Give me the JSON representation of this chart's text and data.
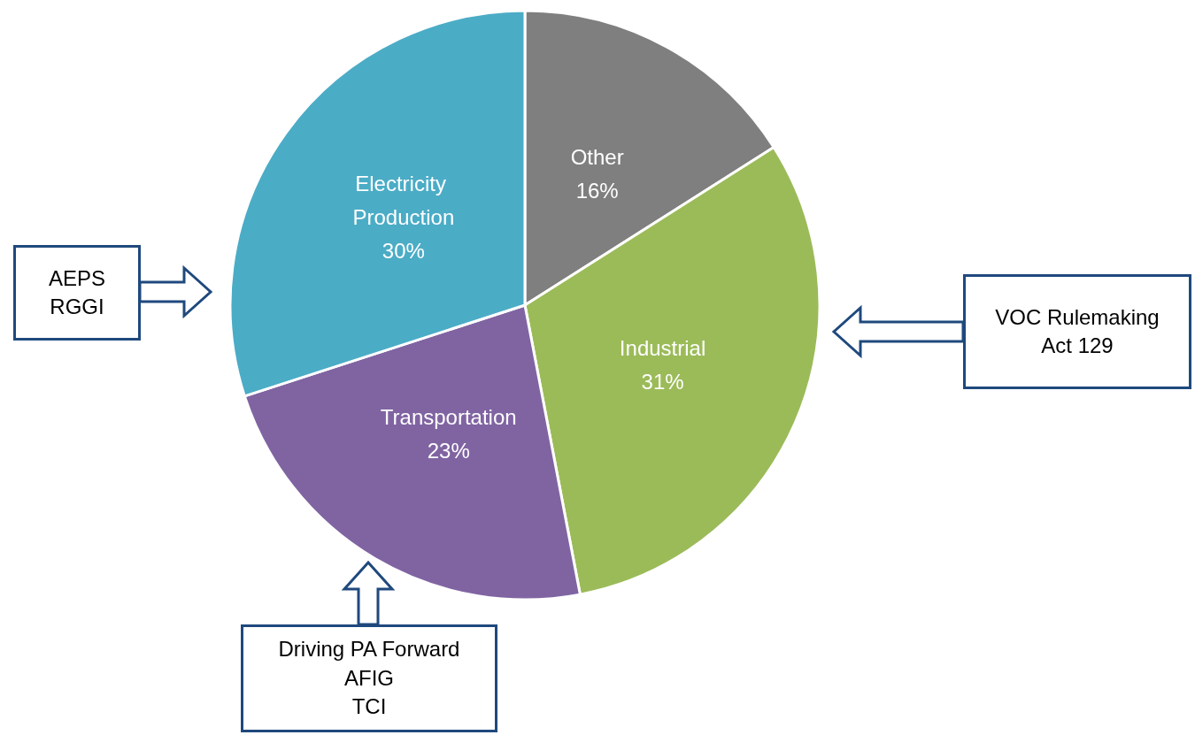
{
  "chart_data": {
    "type": "pie",
    "categories": [
      "Other",
      "Industrial",
      "Transportation",
      "Electricity Production"
    ],
    "values": [
      16,
      31,
      23,
      30
    ],
    "colors": [
      "#7f7f7f",
      "#9bbb59",
      "#8064a2",
      "#4bacc6"
    ],
    "value_labels": [
      "16%",
      "31%",
      "23%",
      "30%"
    ],
    "legend": false,
    "annotations": [
      "AEPS\nRGGI",
      "VOC Rulemaking\nAct 129",
      "Driving PA Forward\nAFIG\nTCI"
    ]
  }
}
